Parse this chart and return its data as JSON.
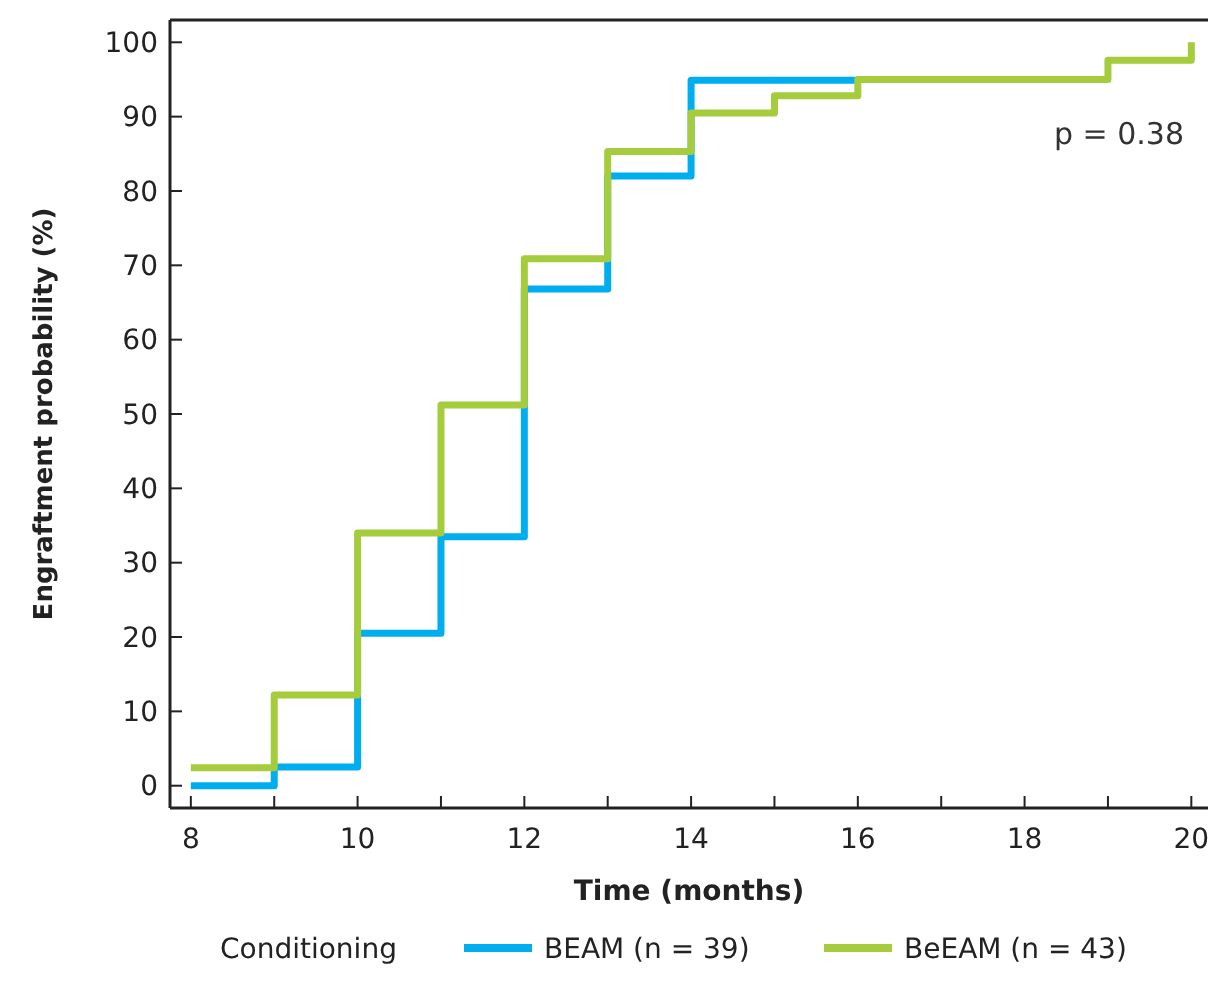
{
  "chart_data": {
    "type": "step",
    "xlabel": "Time (months)",
    "ylabel": "Engraftment probability (%)",
    "legend_title": "Conditioning",
    "legend": "bottom",
    "grid": false,
    "line_style": "solid",
    "xlim": [
      7.75,
      20.2
    ],
    "ylim": [
      -3,
      103
    ],
    "xticks": [
      8,
      {
        "value": 9,
        "label": null
      },
      10,
      {
        "value": 11,
        "label": null
      },
      12,
      {
        "value": 13,
        "label": null
      },
      14,
      {
        "value": 15,
        "label": null
      },
      16,
      {
        "value": 17,
        "label": null
      },
      18,
      {
        "value": 19,
        "label": null
      },
      20
    ],
    "yticks": [
      0,
      10,
      20,
      30,
      40,
      50,
      60,
      70,
      80,
      90,
      100
    ],
    "annotations": [
      "p = 0.38"
    ],
    "series": [
      {
        "name": "BEAM (n = 39)",
        "color": "#00aeef",
        "x": [
          8,
          9,
          10,
          11,
          12,
          13,
          14,
          16
        ],
        "values": [
          0,
          2.5,
          20.5,
          33.5,
          66.8,
          82,
          94.9,
          94.9
        ]
      },
      {
        "name": "BeEAM (n = 43)",
        "color": "#a4cc3c",
        "x": [
          8,
          9,
          10,
          11,
          12,
          13,
          14,
          15,
          16,
          19,
          20
        ],
        "values": [
          2.4,
          12.2,
          34,
          51.2,
          70.9,
          85.3,
          90.5,
          92.8,
          95,
          97.6,
          100
        ]
      }
    ]
  }
}
